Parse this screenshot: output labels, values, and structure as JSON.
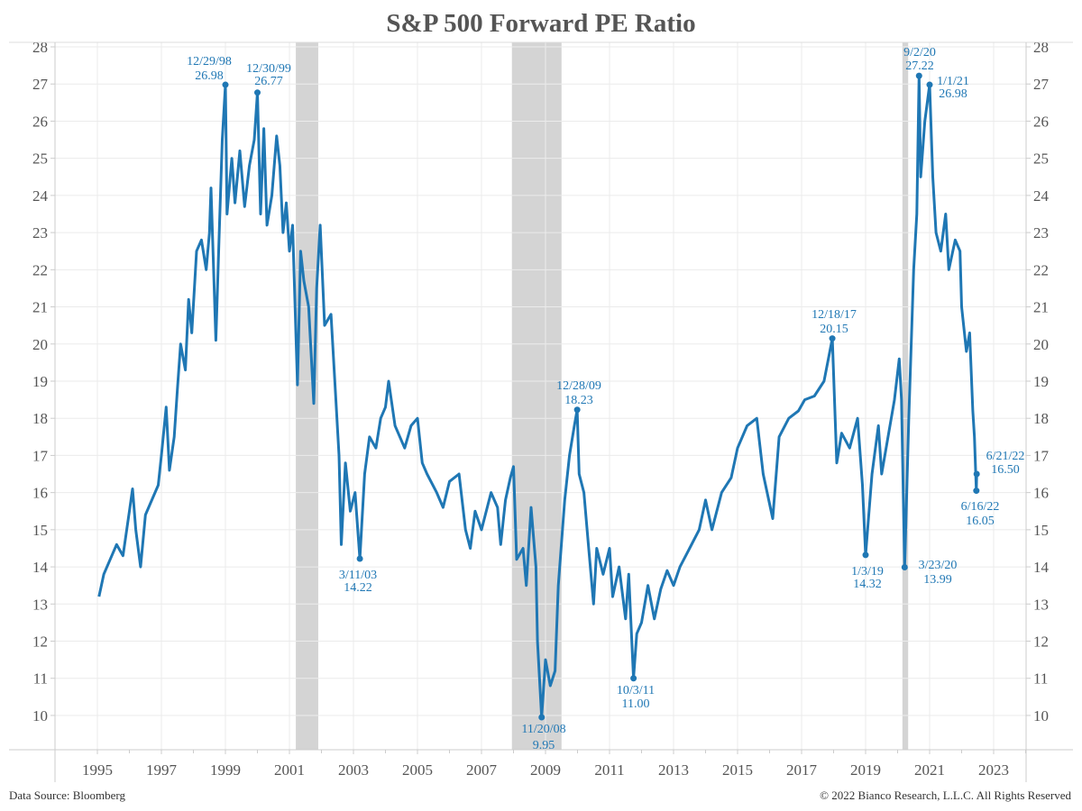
{
  "chart_data": {
    "type": "line",
    "title": "S&P 500 Forward PE Ratio",
    "xlabel": "",
    "ylabel": "",
    "xlim": [
      1994,
      2024.1
    ],
    "ylim": [
      9.1,
      28.1
    ],
    "x_ticks": [
      "1995",
      "1997",
      "1999",
      "2001",
      "2003",
      "2005",
      "2007",
      "2009",
      "2011",
      "2013",
      "2015",
      "2017",
      "2019",
      "2021",
      "2023"
    ],
    "y_ticks": [
      "10",
      "11",
      "12",
      "13",
      "14",
      "15",
      "16",
      "17",
      "18",
      "19",
      "20",
      "21",
      "22",
      "23",
      "24",
      "25",
      "26",
      "27",
      "28"
    ],
    "y_axes": "left and right",
    "grid": true,
    "line_color": "#1f77b4",
    "recession_color": "#d4d4d4",
    "recessions": [
      [
        2001.2,
        2001.9
      ],
      [
        2007.95,
        2009.5
      ],
      [
        2020.15,
        2020.33
      ]
    ],
    "series": [
      {
        "x": [
          1995.05,
          1995.2,
          1995.4,
          1995.6,
          1995.8,
          1996.0,
          1996.1,
          1996.2,
          1996.35,
          1996.5,
          1996.7,
          1996.9,
          1997.0,
          1997.15,
          1997.25,
          1997.4,
          1997.5,
          1997.6,
          1997.75,
          1997.85,
          1997.95,
          1998.1,
          1998.25,
          1998.4,
          1998.5,
          1998.55,
          1998.7,
          1998.8,
          1998.9,
          1999.0,
          1999.05,
          1999.2,
          1999.3,
          1999.45,
          1999.6,
          1999.75,
          1999.9,
          2000.0,
          2000.1,
          2000.2,
          2000.3,
          2000.45,
          2000.6,
          2000.7,
          2000.8,
          2000.9,
          2001.0,
          2001.1,
          2001.25,
          2001.35,
          2001.45,
          2001.6,
          2001.76,
          2001.85,
          2001.96,
          2002.1,
          2002.3,
          2002.45,
          2002.55,
          2002.62,
          2002.75,
          2002.9,
          2003.05,
          2003.2,
          2003.35,
          2003.5,
          2003.7,
          2003.85,
          2004.0,
          2004.1,
          2004.3,
          2004.6,
          2004.8,
          2005.0,
          2005.15,
          2005.3,
          2005.6,
          2005.8,
          2006.0,
          2006.3,
          2006.5,
          2006.65,
          2006.8,
          2007.0,
          2007.3,
          2007.5,
          2007.6,
          2007.75,
          2007.9,
          2008.0,
          2008.1,
          2008.3,
          2008.4,
          2008.55,
          2008.7,
          2008.75,
          2008.88,
          2009.0,
          2009.15,
          2009.3,
          2009.4,
          2009.6,
          2009.75,
          2009.9,
          2009.99,
          2010.05,
          2010.2,
          2010.35,
          2010.5,
          2010.6,
          2010.8,
          2011.0,
          2011.1,
          2011.3,
          2011.5,
          2011.6,
          2011.75,
          2011.85,
          2012.0,
          2012.2,
          2012.4,
          2012.6,
          2012.8,
          2013.0,
          2013.2,
          2013.5,
          2013.8,
          2014.0,
          2014.2,
          2014.5,
          2014.8,
          2015.0,
          2015.3,
          2015.6,
          2015.8,
          2016.1,
          2016.3,
          2016.6,
          2016.9,
          2017.1,
          2017.4,
          2017.7,
          2017.96,
          2018.1,
          2018.25,
          2018.5,
          2018.75,
          2018.9,
          2019.0,
          2019.2,
          2019.4,
          2019.5,
          2019.7,
          2019.9,
          2020.05,
          2020.12,
          2020.22,
          2020.35,
          2020.5,
          2020.6,
          2020.67,
          2020.72,
          2020.85,
          2021.0,
          2021.1,
          2021.2,
          2021.35,
          2021.5,
          2021.6,
          2021.8,
          2021.95,
          2022.0,
          2022.15,
          2022.25,
          2022.35,
          2022.4,
          2022.46,
          2022.47
        ],
        "y": [
          13.2,
          13.8,
          14.2,
          14.6,
          14.3,
          15.5,
          16.1,
          15.0,
          14.0,
          15.4,
          15.8,
          16.2,
          17.0,
          18.3,
          16.6,
          17.5,
          18.8,
          20.0,
          19.3,
          21.2,
          20.3,
          22.5,
          22.8,
          22.0,
          23.0,
          24.2,
          20.1,
          22.8,
          25.5,
          26.98,
          23.5,
          25.0,
          23.8,
          25.2,
          23.7,
          24.8,
          25.5,
          26.77,
          23.5,
          25.8,
          23.2,
          24.0,
          25.6,
          24.8,
          23.0,
          23.8,
          22.5,
          23.2,
          18.9,
          22.5,
          21.7,
          21.0,
          18.4,
          21.5,
          23.2,
          20.5,
          20.8,
          18.5,
          17.0,
          14.6,
          16.8,
          15.5,
          16.0,
          14.22,
          16.5,
          17.5,
          17.2,
          18.0,
          18.3,
          19.0,
          17.8,
          17.2,
          17.8,
          18.0,
          16.8,
          16.5,
          16.0,
          15.6,
          16.3,
          16.5,
          15.0,
          14.5,
          15.5,
          15.0,
          16.0,
          15.6,
          14.6,
          15.8,
          16.4,
          16.7,
          14.2,
          14.5,
          13.5,
          15.6,
          14.0,
          12.0,
          9.95,
          11.5,
          10.8,
          11.2,
          13.5,
          15.8,
          17.0,
          17.8,
          18.23,
          16.5,
          16.0,
          14.5,
          13.0,
          14.5,
          13.8,
          14.5,
          13.2,
          14.0,
          12.6,
          13.8,
          11.0,
          12.2,
          12.5,
          13.5,
          12.6,
          13.4,
          13.9,
          13.5,
          14.0,
          14.5,
          15.0,
          15.8,
          15.0,
          16.0,
          16.4,
          17.2,
          17.8,
          18.0,
          16.5,
          15.3,
          17.5,
          18.0,
          18.2,
          18.5,
          18.6,
          19.0,
          20.15,
          16.8,
          17.6,
          17.2,
          18.0,
          16.2,
          14.32,
          16.5,
          17.8,
          16.5,
          17.5,
          18.5,
          19.6,
          18.5,
          13.99,
          18.0,
          22.0,
          23.5,
          27.22,
          24.5,
          26.0,
          26.98,
          24.5,
          23.0,
          22.5,
          23.5,
          22.0,
          22.8,
          22.5,
          21.0,
          19.8,
          20.3,
          18.2,
          17.5,
          16.05,
          16.5
        ]
      }
    ],
    "annotations": [
      {
        "date": "12/29/98",
        "value": "26.98"
      },
      {
        "date": "12/30/99",
        "value": "26.77"
      },
      {
        "date": "3/11/03",
        "value": "14.22"
      },
      {
        "date": "11/20/08",
        "value": "9.95"
      },
      {
        "date": "12/28/09",
        "value": "18.23"
      },
      {
        "date": "10/3/11",
        "value": "11.00"
      },
      {
        "date": "12/18/17",
        "value": "20.15"
      },
      {
        "date": "1/3/19",
        "value": "14.32"
      },
      {
        "date": "3/23/20",
        "value": "13.99"
      },
      {
        "date": "9/2/20",
        "value": "27.22"
      },
      {
        "date": "1/1/21",
        "value": "26.98"
      },
      {
        "date": "6/16/22",
        "value": "16.05"
      },
      {
        "date": "6/21/22",
        "value": "16.50"
      }
    ]
  },
  "footer": {
    "source": "Data Source: Bloomberg",
    "copyright": "© 2022 Bianco Research, L.L.C. All Rights Reserved"
  }
}
